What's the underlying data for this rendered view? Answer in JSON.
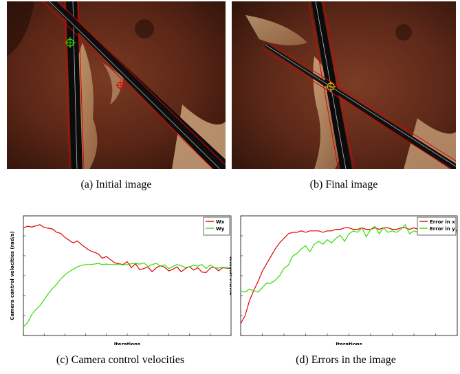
{
  "figures": {
    "a": {
      "caption": "(a) Initial image"
    },
    "b": {
      "caption": "(b) Final image"
    },
    "c": {
      "caption": "(c) Camera control velocities"
    },
    "d": {
      "caption": "(d) Errors in the image"
    }
  },
  "colors": {
    "red": "#dd0000",
    "green": "#33dd00",
    "tissue_dark": "#3a1a10",
    "tissue_mid": "#6e3420"
  },
  "chart_data": [
    {
      "type": "line",
      "xlabel": "Iterations",
      "ylabel": "Camera control velocities (rad/s)",
      "xlim": [
        0,
        50
      ],
      "ylim": [
        -0.015,
        0.015
      ],
      "grid": false,
      "legend": "top-right",
      "x": [
        0,
        1,
        2,
        3,
        4,
        5,
        6,
        7,
        8,
        9,
        10,
        11,
        12,
        13,
        14,
        15,
        16,
        17,
        18,
        19,
        20,
        21,
        22,
        23,
        24,
        25,
        26,
        27,
        28,
        29,
        30,
        31,
        32,
        33,
        34,
        35,
        36,
        37,
        38,
        39,
        40,
        41,
        42,
        43,
        44,
        45,
        46,
        47,
        48,
        49,
        50
      ],
      "series": [
        {
          "name": "Wx",
          "color": "#dd0000",
          "values": [
            0.012,
            0.0124,
            0.0122,
            0.0125,
            0.0128,
            0.0121,
            0.0119,
            0.0117,
            0.0109,
            0.0106,
            0.0096,
            0.0089,
            0.0082,
            0.0087,
            0.0078,
            0.007,
            0.0063,
            0.0059,
            0.0055,
            0.0044,
            0.0048,
            0.004,
            0.0032,
            0.003,
            0.0028,
            0.0035,
            0.002,
            0.003,
            0.0015,
            0.0018,
            0.0022,
            0.001,
            0.002,
            0.0025,
            0.0021,
            0.0012,
            0.0016,
            0.0022,
            0.001,
            0.0018,
            0.0023,
            0.0014,
            0.002,
            0.0009,
            0.0008,
            0.0019,
            0.0021,
            0.0012,
            0.002,
            0.0019,
            0.0018
          ]
        },
        {
          "name": "Wy",
          "color": "#33dd00",
          "values": [
            -0.0128,
            -0.0118,
            -0.0098,
            -0.0085,
            -0.0075,
            -0.006,
            -0.0045,
            -0.0032,
            -0.0022,
            -0.0008,
            0.0002,
            0.001,
            0.0016,
            0.0022,
            0.0026,
            0.0028,
            0.0028,
            0.0029,
            0.0031,
            0.0028,
            0.0029,
            0.0028,
            0.0028,
            0.0029,
            0.0027,
            0.0028,
            0.003,
            0.0031,
            0.0029,
            0.0032,
            0.0023,
            0.0028,
            0.0031,
            0.0024,
            0.0027,
            0.0018,
            0.0023,
            0.0028,
            0.0025,
            0.0021,
            0.0022,
            0.0026,
            0.0024,
            0.0028,
            0.0018,
            0.0027,
            0.002,
            0.0019,
            0.0021,
            0.002,
            0.0019
          ]
        }
      ]
    },
    {
      "type": "line",
      "xlabel": "Iterations",
      "ylabel": "Errors (pixels)",
      "xlim": [
        0,
        50
      ],
      "ylim": [
        -50,
        30
      ],
      "grid": false,
      "legend": "top-right",
      "x": [
        0,
        1,
        2,
        3,
        4,
        5,
        6,
        7,
        8,
        9,
        10,
        11,
        12,
        13,
        14,
        15,
        16,
        17,
        18,
        19,
        20,
        21,
        22,
        23,
        24,
        25,
        26,
        27,
        28,
        29,
        30,
        31,
        32,
        33,
        34,
        35,
        36,
        37,
        38,
        39,
        40,
        41,
        42,
        43,
        44,
        45,
        46,
        47,
        48,
        49,
        50
      ],
      "series": [
        {
          "name": "Error in x",
          "color": "#dd0000",
          "values": [
            -42,
            -37,
            -27,
            -20,
            -14,
            -7,
            -2,
            3,
            8,
            12,
            15,
            18,
            19,
            19,
            20,
            19,
            20,
            20,
            20,
            19,
            20,
            20,
            21,
            21,
            22,
            22,
            21,
            21,
            22,
            21,
            21,
            22,
            21,
            22,
            22,
            21,
            21,
            22,
            22,
            21,
            22,
            21,
            22,
            21,
            20,
            21,
            21,
            22,
            21,
            20,
            20
          ]
        },
        {
          "name": "Error in y",
          "color": "#33dd00",
          "values": [
            -20,
            -21,
            -19,
            -20,
            -21,
            -18,
            -15,
            -15,
            -13,
            -10,
            -5,
            -3,
            3,
            5,
            8,
            10,
            6,
            11,
            13,
            11,
            14,
            12,
            15,
            17,
            13,
            18,
            20,
            19,
            22,
            16,
            21,
            23,
            18,
            22,
            19,
            20,
            19,
            21,
            24,
            18,
            20,
            19,
            22,
            20,
            21,
            18,
            20,
            23,
            19,
            20,
            21
          ]
        }
      ]
    }
  ]
}
